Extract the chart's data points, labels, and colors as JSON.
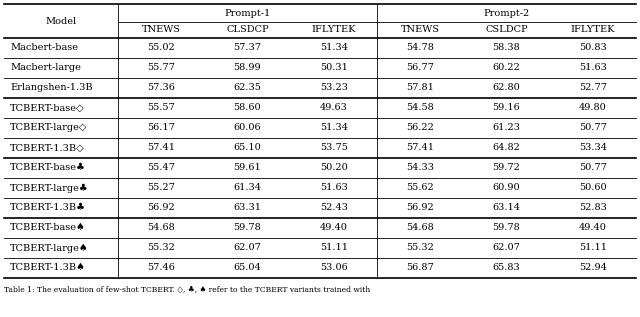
{
  "header_row1_labels": [
    "Prompt-1",
    "Prompt-2"
  ],
  "header_row2": [
    "TNEWS",
    "CLSDCP",
    "IFLYTEK",
    "TNEWS",
    "CSLDCP",
    "IFLYTEK"
  ],
  "rows": [
    [
      "Macbert-base",
      "55.02",
      "57.37",
      "51.34",
      "54.78",
      "58.38",
      "50.83"
    ],
    [
      "Macbert-large",
      "55.77",
      "58.99",
      "50.31",
      "56.77",
      "60.22",
      "51.63"
    ],
    [
      "Erlangshen-1.3B",
      "57.36",
      "62.35",
      "53.23",
      "57.81",
      "62.80",
      "52.77"
    ],
    [
      "TCBERT-base◇",
      "55.57",
      "58.60",
      "49.63",
      "54.58",
      "59.16",
      "49.80"
    ],
    [
      "TCBERT-large◇",
      "56.17",
      "60.06",
      "51.34",
      "56.22",
      "61.23",
      "50.77"
    ],
    [
      "TCBERT-1.3B◇",
      "57.41",
      "65.10",
      "53.75",
      "57.41",
      "64.82",
      "53.34"
    ],
    [
      "TCBERT-base♣",
      "55.47",
      "59.61",
      "50.20",
      "54.33",
      "59.72",
      "50.77"
    ],
    [
      "TCBERT-large♣",
      "55.27",
      "61.34",
      "51.63",
      "55.62",
      "60.90",
      "50.60"
    ],
    [
      "TCBERT-1.3B♣",
      "56.92",
      "63.31",
      "52.43",
      "56.92",
      "63.14",
      "52.83"
    ],
    [
      "TCBERT-base♠",
      "54.68",
      "59.78",
      "49.40",
      "54.68",
      "59.78",
      "49.40"
    ],
    [
      "TCBERT-large♠",
      "55.32",
      "62.07",
      "51.11",
      "55.32",
      "62.07",
      "51.11"
    ],
    [
      "TCBERT-1.3B♠",
      "57.46",
      "65.04",
      "53.06",
      "56.87",
      "65.83",
      "52.94"
    ]
  ],
  "group_separators": [
    3,
    6,
    9
  ],
  "bg_color": "#ffffff",
  "text_color": "#000000",
  "font_size": 7.0
}
